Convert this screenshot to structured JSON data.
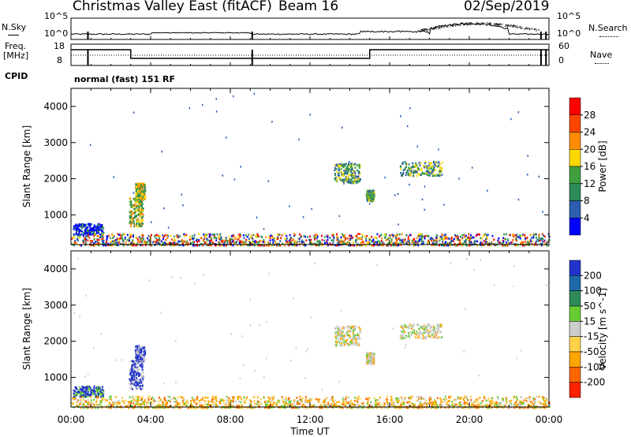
{
  "header": {
    "station": "Christmas Valley East (fitACF)",
    "beam": "Beam 16",
    "date": "02/Sep/2019"
  },
  "top_panels": {
    "nsky_label": "N.Sky",
    "nsearch_label": "N.Search",
    "noise_ticks": [
      "10^5",
      "10^0"
    ],
    "freq_label_1": "Freq.",
    "freq_label_2": "[MHz]",
    "freq_ticks": [
      "18",
      "8"
    ],
    "nave_label": "Nave",
    "nave_ticks": [
      "60",
      "0"
    ],
    "cpid_label": "CPID",
    "cpid_text": "normal (fast) 151 RF"
  },
  "x_axis": {
    "label": "Time UT",
    "ticks": [
      "00:00",
      "04:00",
      "08:00",
      "12:00",
      "16:00",
      "20:00",
      "00:00"
    ]
  },
  "colors": {
    "power": [
      "#0000ff",
      "#2c5fb0",
      "#2e8b57",
      "#40a040",
      "#ffd700",
      "#ff8c00",
      "#ff4500",
      "#ff0000"
    ],
    "velocity": [
      "#2233cc",
      "#1e6aa8",
      "#2e8b57",
      "#66cc33",
      "#cccccc",
      "#ffd24a",
      "#ffa500",
      "#ff6600",
      "#ff2200"
    ]
  },
  "chart_data": [
    {
      "type": "heatmap",
      "name": "power",
      "xlabel": "Time UT",
      "ylabel": "Slant Range [km]",
      "xlim": [
        0,
        24
      ],
      "ylim": [
        180,
        4500
      ],
      "y_ticks": [
        1000,
        2000,
        3000,
        4000
      ],
      "colorbar": {
        "label": "Power [dB]",
        "ticks": [
          "4",
          "8",
          "12",
          "16",
          "20",
          "24",
          "28"
        ],
        "range": [
          0,
          32
        ]
      },
      "regions": [
        {
          "t0": 0.1,
          "t1": 1.6,
          "r0": 480,
          "r1": 780,
          "level": "low"
        },
        {
          "t0": 2.9,
          "t1": 3.6,
          "r0": 700,
          "r1": 1500,
          "level": "mid"
        },
        {
          "t0": 3.2,
          "t1": 3.7,
          "r0": 1450,
          "r1": 1900,
          "level": "mid"
        },
        {
          "t0": 13.2,
          "t1": 14.5,
          "r0": 1900,
          "r1": 2450,
          "level": "mixed"
        },
        {
          "t0": 14.8,
          "t1": 15.2,
          "r0": 1400,
          "r1": 1700,
          "level": "mixed"
        },
        {
          "t0": 16.5,
          "t1": 18.6,
          "r0": 2100,
          "r1": 2500,
          "level": "mixed"
        },
        {
          "t0": 0,
          "t1": 24,
          "r0": 180,
          "r1": 500,
          "level": "ground"
        }
      ]
    },
    {
      "type": "heatmap",
      "name": "velocity",
      "xlabel": "Time UT",
      "ylabel": "Slant Range [km]",
      "xlim": [
        0,
        24
      ],
      "ylim": [
        180,
        4500
      ],
      "y_ticks": [
        1000,
        2000,
        3000,
        4000
      ],
      "colorbar": {
        "label": "Velocity [m s^-1]",
        "ticks": [
          "200",
          "100",
          "50",
          "15",
          "-15",
          "-50",
          "-100",
          "-200"
        ]
      }
    }
  ]
}
